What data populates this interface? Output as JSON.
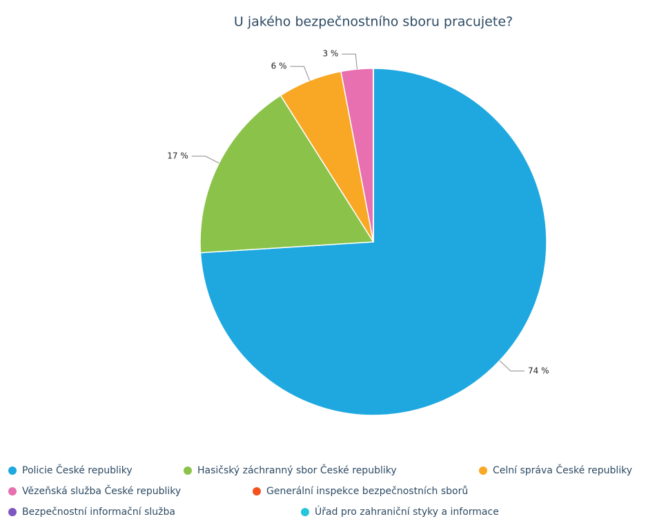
{
  "chart_data": {
    "type": "pie",
    "title": "U jakého bezpečnostního sboru pracujete?",
    "categories": [
      "Policie České republiky",
      "Hasičský záchranný sbor České republiky",
      "Celní správa České republiky",
      "Vězeňská služba České republiky",
      "Generální inspekce bezpečnostních sborů",
      "Bezpečnostní informační služba",
      "Úřad pro zahraniční styky a informace"
    ],
    "values": [
      74,
      17,
      6,
      3,
      0,
      0,
      0
    ],
    "value_labels": [
      "74 %",
      "17 %",
      "6 %",
      "3 %",
      null,
      null,
      null
    ],
    "colors": [
      "#1fa8e0",
      "#8bc34a",
      "#f9a825",
      "#e86fb0",
      "#f4511e",
      "#7e57c2",
      "#26c6da"
    ],
    "legend": "bottom"
  }
}
